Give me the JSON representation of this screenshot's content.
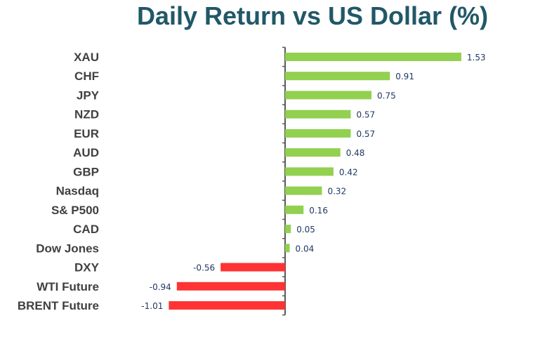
{
  "colors": {
    "title": "#215868",
    "positive": "#92d050",
    "negative": "#ff3333",
    "axis": "#595959",
    "category_text": "#404040",
    "value_text": "#1f3864"
  },
  "chart_data": {
    "type": "bar",
    "orientation": "horizontal",
    "title": "Daily Return vs US Dollar (%)",
    "xlabel": "",
    "ylabel": "",
    "grid": false,
    "legend": "none",
    "xlim": [
      -1.01,
      1.53
    ],
    "categories": [
      "XAU",
      "CHF",
      "JPY",
      "NZD",
      "EUR",
      "AUD",
      "GBP",
      "Nasdaq",
      "S& P500",
      "CAD",
      "Dow Jones",
      "DXY",
      "WTI Future",
      "BRENT Future"
    ],
    "values": [
      1.53,
      0.91,
      0.75,
      0.57,
      0.57,
      0.48,
      0.42,
      0.32,
      0.16,
      0.05,
      0.04,
      -0.56,
      -0.94,
      -1.01
    ],
    "value_labels": [
      "1.53",
      "0.91",
      "0.75",
      "0.57",
      "0.57",
      "0.48",
      "0.42",
      "0.32",
      "0.16",
      "0.05",
      "0.04",
      "-0.56",
      "-0.94",
      "-1.01"
    ]
  }
}
